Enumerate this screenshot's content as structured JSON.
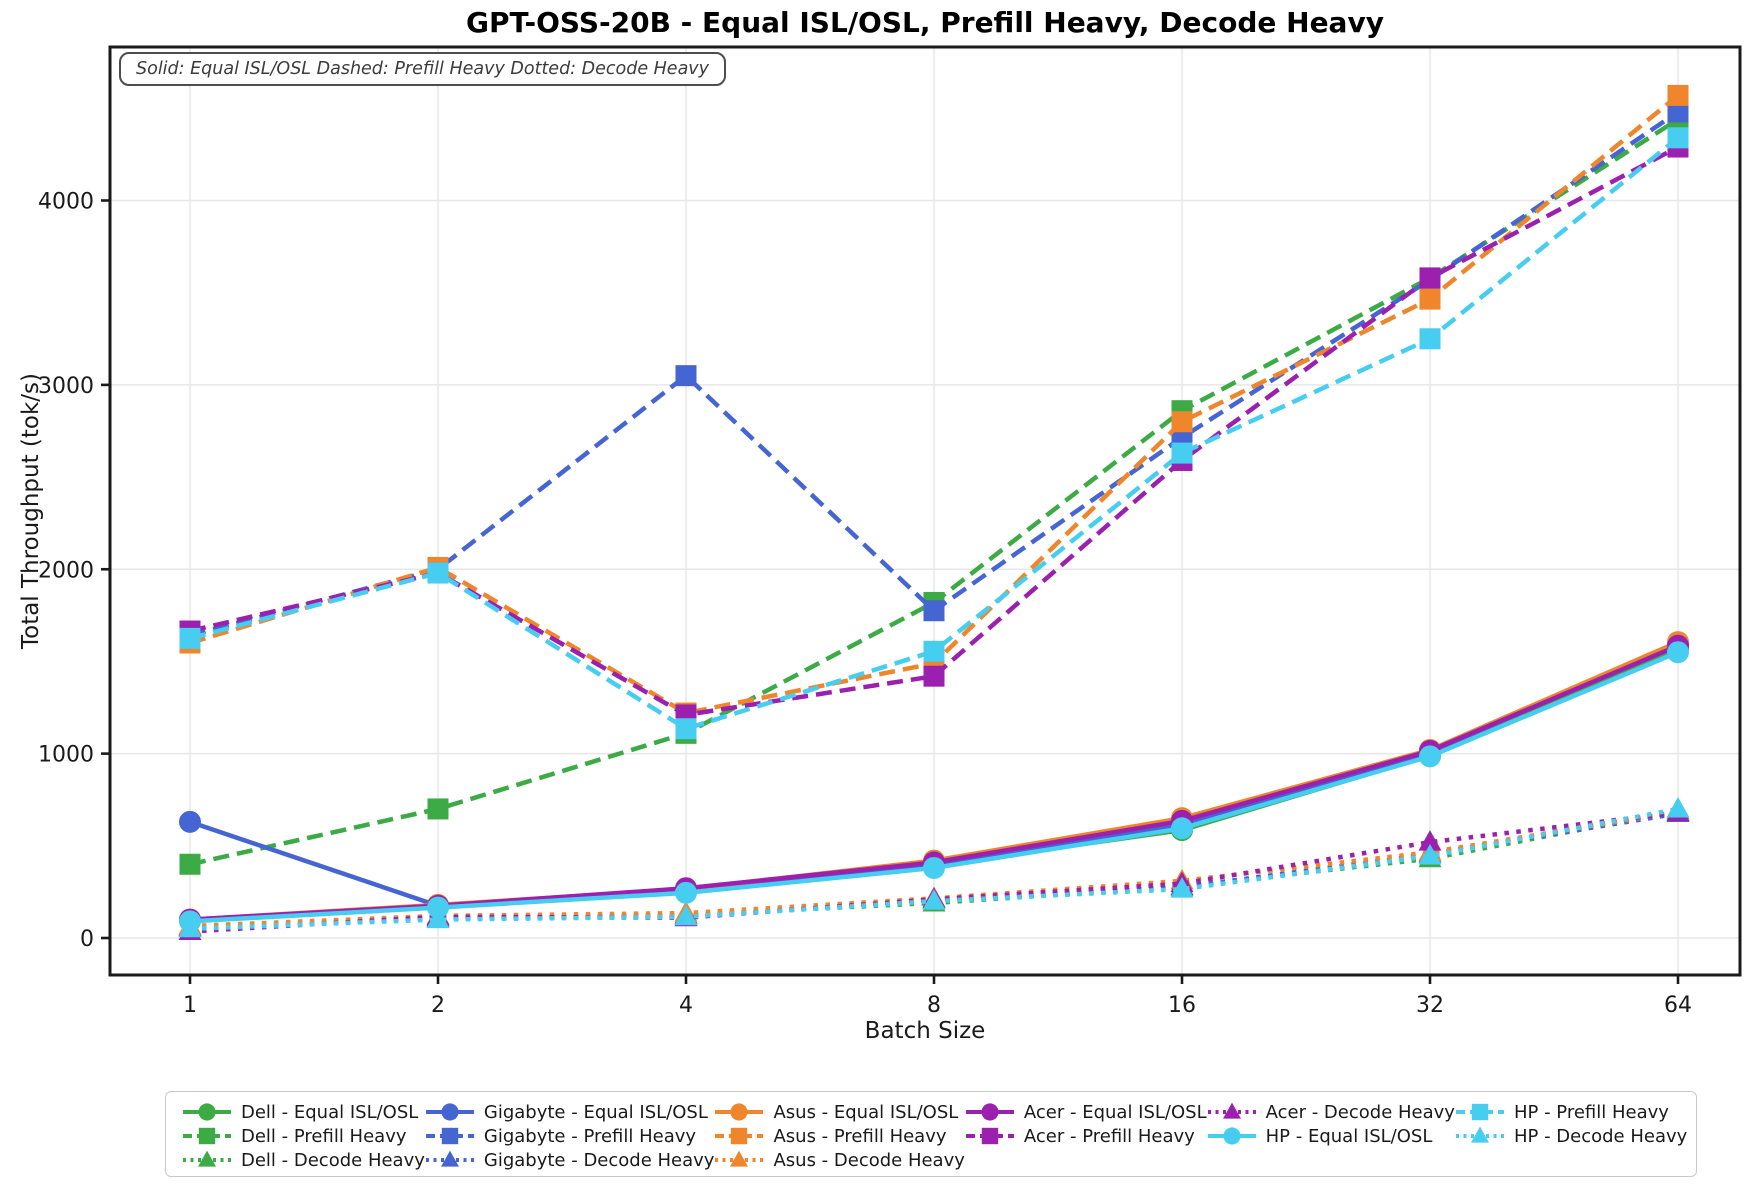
{
  "chart_data": {
    "type": "line",
    "title": "GPT-OSS-20B - Equal ISL/OSL, Prefill Heavy, Decode Heavy",
    "annotation": "Solid: Equal ISL/OSL   Dashed: Prefill Heavy   Dotted: Decode Heavy",
    "xlabel": "Batch Size",
    "ylabel": "Total Throughput (tok/s)",
    "x_scale": "log2",
    "x": [
      1,
      2,
      4,
      8,
      16,
      32,
      64
    ],
    "x_tick_labels": [
      "1",
      "2",
      "4",
      "8",
      "16",
      "32",
      "64"
    ],
    "y_ticks": [
      0,
      1000,
      2000,
      3000,
      4000
    ],
    "y_tick_labels": [
      "0",
      "1000",
      "2000",
      "3000",
      "4000"
    ],
    "ylim": [
      -200,
      4830
    ],
    "grid": true,
    "legend_position": "bottom",
    "line_style_key": {
      "solid": "Equal ISL/OSL",
      "dashed": "Prefill Heavy",
      "dotted": "Decode Heavy"
    },
    "vendor_colors": {
      "Dell": "#3cab46",
      "Gigabyte": "#4565d2",
      "Asus": "#f0862c",
      "Acer": "#9c20b0",
      "HP": "#46cdf0"
    },
    "series": [
      {
        "name": "Dell - Equal ISL/OSL",
        "vendor": "Dell",
        "workload": "Equal ISL/OSL",
        "color": "#3cab46",
        "line": "solid",
        "marker": "circle",
        "values": [
          95,
          170,
          255,
          395,
          585,
          990,
          1570
        ]
      },
      {
        "name": "Dell - Prefill Heavy",
        "vendor": "Dell",
        "workload": "Prefill Heavy",
        "color": "#3cab46",
        "line": "dashed",
        "marker": "square",
        "values": [
          400,
          700,
          1110,
          1820,
          2860,
          3580,
          4440
        ]
      },
      {
        "name": "Dell - Decode Heavy",
        "vendor": "Dell",
        "workload": "Decode Heavy",
        "color": "#3cab46",
        "line": "dotted",
        "marker": "triangle",
        "values": [
          60,
          110,
          125,
          190,
          280,
          430,
          690
        ]
      },
      {
        "name": "Gigabyte - Equal ISL/OSL",
        "vendor": "Gigabyte",
        "workload": "Equal ISL/OSL",
        "color": "#4565d2",
        "line": "solid",
        "marker": "circle",
        "values": [
          630,
          175,
          260,
          400,
          610,
          1010,
          1590
        ]
      },
      {
        "name": "Gigabyte - Prefill Heavy",
        "vendor": "Gigabyte",
        "workload": "Prefill Heavy",
        "color": "#4565d2",
        "line": "dashed",
        "marker": "square",
        "values": [
          1640,
          2000,
          3050,
          1775,
          2715,
          3570,
          4480
        ]
      },
      {
        "name": "Gigabyte - Decode Heavy",
        "vendor": "Gigabyte",
        "workload": "Decode Heavy",
        "color": "#4565d2",
        "line": "dotted",
        "marker": "triangle",
        "values": [
          55,
          105,
          120,
          205,
          275,
          455,
          675
        ]
      },
      {
        "name": "Asus - Equal ISL/OSL",
        "vendor": "Asus",
        "workload": "Equal ISL/OSL",
        "color": "#f0862c",
        "line": "solid",
        "marker": "circle",
        "values": [
          100,
          180,
          265,
          420,
          650,
          1020,
          1605
        ]
      },
      {
        "name": "Asus - Prefill Heavy",
        "vendor": "Asus",
        "workload": "Prefill Heavy",
        "color": "#f0862c",
        "line": "dashed",
        "marker": "square",
        "values": [
          1600,
          2010,
          1220,
          1490,
          2800,
          3465,
          4570
        ]
      },
      {
        "name": "Asus - Decode Heavy",
        "vendor": "Asus",
        "workload": "Decode Heavy",
        "color": "#f0862c",
        "line": "dotted",
        "marker": "triangle",
        "values": [
          65,
          120,
          135,
          215,
          310,
          465,
          685
        ]
      },
      {
        "name": "Acer - Equal ISL/OSL",
        "vendor": "Acer",
        "workload": "Equal ISL/OSL",
        "color": "#9c20b0",
        "line": "solid",
        "marker": "circle",
        "values": [
          100,
          175,
          270,
          410,
          635,
          1015,
          1585
        ]
      },
      {
        "name": "Acer - Prefill Heavy",
        "vendor": "Acer",
        "workload": "Prefill Heavy",
        "color": "#9c20b0",
        "line": "dashed",
        "marker": "square",
        "values": [
          1665,
          1980,
          1210,
          1420,
          2590,
          3580,
          4290
        ]
      },
      {
        "name": "Acer - Decode Heavy",
        "vendor": "Acer",
        "workload": "Decode Heavy",
        "color": "#9c20b0",
        "line": "dotted",
        "marker": "triangle",
        "values": [
          35,
          115,
          110,
          210,
          295,
          520,
          680
        ]
      },
      {
        "name": "HP - Equal ISL/OSL",
        "vendor": "HP",
        "workload": "Equal ISL/OSL",
        "color": "#46cdf0",
        "line": "solid",
        "marker": "circle",
        "values": [
          90,
          165,
          245,
          380,
          595,
          985,
          1550
        ]
      },
      {
        "name": "HP - Prefill Heavy",
        "vendor": "HP",
        "workload": "Prefill Heavy",
        "color": "#46cdf0",
        "line": "dashed",
        "marker": "square",
        "values": [
          1625,
          1980,
          1135,
          1555,
          2630,
          3250,
          4340
        ]
      },
      {
        "name": "HP - Decode Heavy",
        "vendor": "HP",
        "workload": "Decode Heavy",
        "color": "#46cdf0",
        "line": "dotted",
        "marker": "triangle",
        "values": [
          50,
          100,
          115,
          200,
          265,
          445,
          700
        ]
      }
    ],
    "legend_columns": [
      [
        0,
        1,
        2
      ],
      [
        3,
        4,
        5
      ],
      [
        6,
        7,
        8
      ],
      [
        9,
        10
      ],
      [
        11,
        12
      ],
      [
        13,
        14
      ]
    ]
  }
}
